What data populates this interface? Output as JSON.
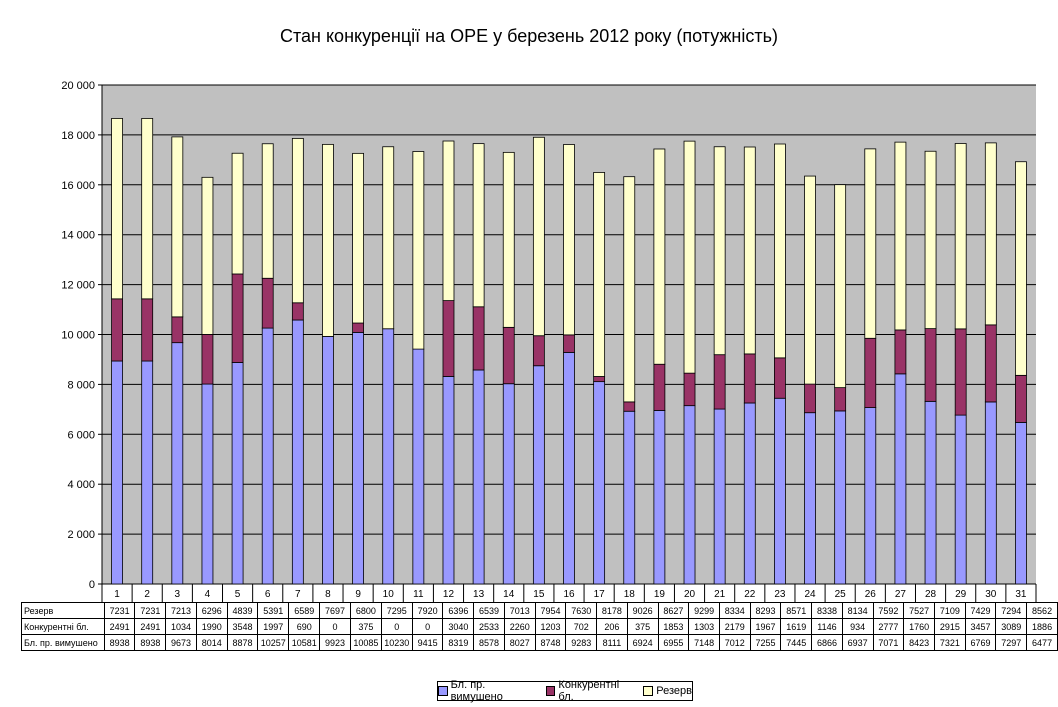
{
  "chart_data": {
    "type": "bar",
    "stacked": true,
    "title": "Стан конкуренції на ОРЕ  у березень 2012 року (потужність)",
    "xlabel": "",
    "ylabel": "",
    "ylim": [
      0,
      20000
    ],
    "y_ticks": [
      "0",
      "2 000",
      "4 000",
      "6 000",
      "8 000",
      "10 000",
      "12 000",
      "14 000",
      "16 000",
      "18 000",
      "20 000"
    ],
    "categories": [
      "1",
      "2",
      "3",
      "4",
      "5",
      "6",
      "7",
      "8",
      "9",
      "10",
      "11",
      "12",
      "13",
      "14",
      "15",
      "16",
      "17",
      "18",
      "19",
      "20",
      "21",
      "22",
      "23",
      "24",
      "25",
      "26",
      "27",
      "28",
      "29",
      "30",
      "31"
    ],
    "grid": true,
    "legend_position": "bottom",
    "series": [
      {
        "name": "Бл. пр. вимушено",
        "color": "#9999ff",
        "values": [
          8938,
          8938,
          9673,
          8014,
          8878,
          10257,
          10581,
          9923,
          10085,
          10230,
          9415,
          8319,
          8578,
          8027,
          8748,
          9283,
          8111,
          6924,
          6955,
          7148,
          7012,
          7255,
          7445,
          6866,
          6937,
          7071,
          8423,
          7321,
          6769,
          7297,
          6477
        ]
      },
      {
        "name": "Конкурентні бл.",
        "color": "#993366",
        "values": [
          2491,
          2491,
          1034,
          1990,
          3548,
          1997,
          690,
          0,
          375,
          0,
          0,
          3040,
          2533,
          2260,
          1203,
          702,
          206,
          375,
          1853,
          1303,
          2179,
          1967,
          1619,
          1146,
          934,
          2777,
          1760,
          2915,
          3457,
          3089,
          1886
        ]
      },
      {
        "name": "Резерв",
        "color": "#ffffcc",
        "values": [
          7231,
          7231,
          7213,
          6296,
          4839,
          5391,
          6589,
          7697,
          6800,
          7295,
          7920,
          6396,
          6539,
          7013,
          7954,
          7630,
          8178,
          9026,
          8627,
          9299,
          8334,
          8293,
          8571,
          8338,
          8134,
          7592,
          7527,
          7109,
          7429,
          7294,
          8562
        ]
      }
    ],
    "table_row_order": [
      2,
      1,
      0
    ]
  },
  "colors": {
    "plot_background": "#c0c0c0"
  }
}
